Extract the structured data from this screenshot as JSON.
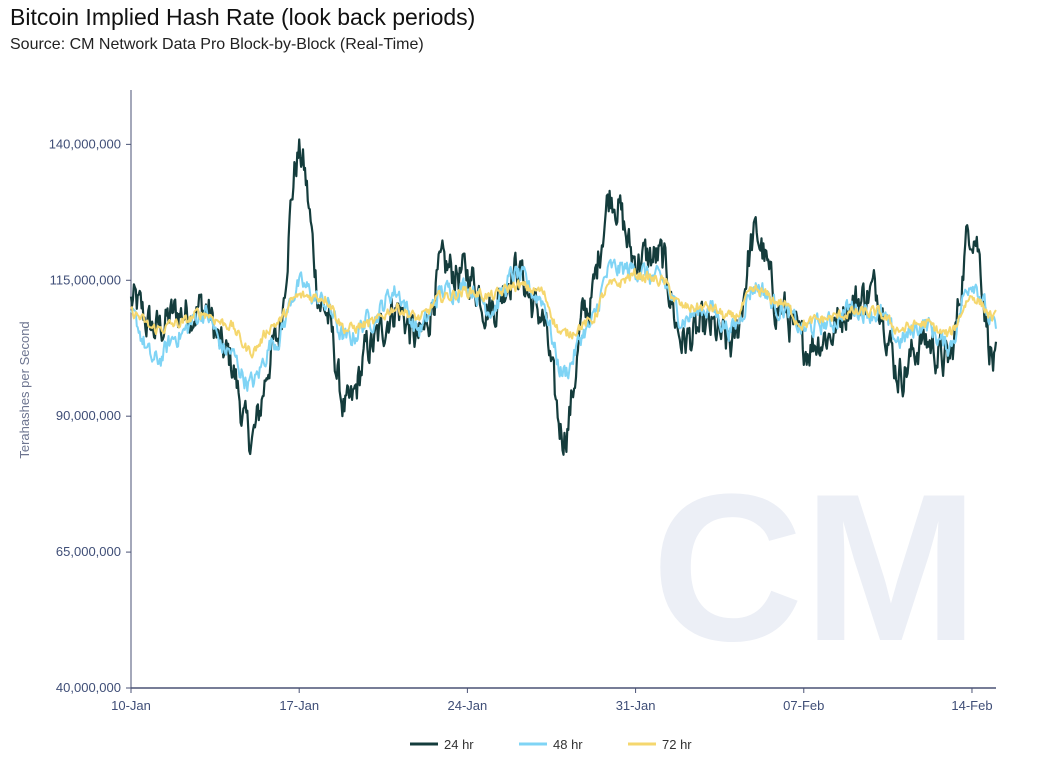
{
  "title": "Bitcoin Implied Hash Rate (look back periods)",
  "subtitle": "Source: CM Network Data Pro Block-by-Block (Real-Time)",
  "watermark": "CM",
  "chart_data": {
    "type": "line",
    "ylabel": "Terahashes per Second",
    "xlabel": "",
    "ylim": [
      40000000,
      150000000
    ],
    "xlim": [
      "2021-01-10",
      "2021-02-15"
    ],
    "y_ticks": [
      {
        "value": 40000000,
        "label": "40,000,000"
      },
      {
        "value": 65000000,
        "label": "65,000,000"
      },
      {
        "value": 90000000,
        "label": "90,000,000"
      },
      {
        "value": 115000000,
        "label": "115,000,000"
      },
      {
        "value": 140000000,
        "label": "140,000,000"
      }
    ],
    "x_ticks": [
      {
        "value": "2021-01-10",
        "label": "10-Jan"
      },
      {
        "value": "2021-01-17",
        "label": "17-Jan"
      },
      {
        "value": "2021-01-24",
        "label": "24-Jan"
      },
      {
        "value": "2021-01-31",
        "label": "31-Jan"
      },
      {
        "value": "2021-02-07",
        "label": "07-Feb"
      },
      {
        "value": "2021-02-14",
        "label": "14-Feb"
      }
    ],
    "legend_position": "bottom",
    "x": [
      "2021-01-10",
      "2021-01-11",
      "2021-01-12",
      "2021-01-13",
      "2021-01-14",
      "2021-01-15",
      "2021-01-16",
      "2021-01-17",
      "2021-01-18",
      "2021-01-19",
      "2021-01-20",
      "2021-01-21",
      "2021-01-22",
      "2021-01-23",
      "2021-01-24",
      "2021-01-25",
      "2021-01-26",
      "2021-01-27",
      "2021-01-28",
      "2021-01-29",
      "2021-01-30",
      "2021-01-31",
      "2021-02-01",
      "2021-02-02",
      "2021-02-03",
      "2021-02-04",
      "2021-02-05",
      "2021-02-06",
      "2021-02-07",
      "2021-02-08",
      "2021-02-09",
      "2021-02-10",
      "2021-02-11",
      "2021-02-12",
      "2021-02-13",
      "2021-02-14",
      "2021-02-15"
    ],
    "series": [
      {
        "name": "24 hr",
        "color": "#143c3c",
        "values": [
          111000000,
          106000000,
          109000000,
          110000000,
          101000000,
          86000000,
          103000000,
          138000000,
          110000000,
          91000000,
          103000000,
          110000000,
          104000000,
          117000000,
          116000000,
          110000000,
          117000000,
          109000000,
          87000000,
          110000000,
          131000000,
          119000000,
          119000000,
          104000000,
          106000000,
          103000000,
          123000000,
          110000000,
          103000000,
          105000000,
          111000000,
          113000000,
          98000000,
          104000000,
          100000000,
          125000000,
          99000000
        ]
      },
      {
        "name": "48 hr",
        "color": "#7fd4f5",
        "values": [
          108000000,
          100000000,
          105000000,
          109000000,
          102000000,
          96000000,
          104000000,
          114000000,
          111000000,
          104000000,
          108000000,
          113000000,
          106000000,
          113000000,
          114000000,
          110000000,
          116000000,
          112000000,
          98000000,
          106000000,
          117000000,
          117000000,
          115000000,
          108000000,
          110000000,
          106000000,
          114000000,
          110000000,
          106000000,
          107000000,
          110000000,
          109000000,
          104000000,
          107000000,
          103000000,
          115000000,
          106000000
        ]
      },
      {
        "name": "72 hr",
        "color": "#f5d76e",
        "values": [
          109000000,
          106000000,
          107000000,
          109000000,
          107000000,
          102000000,
          107000000,
          112000000,
          112000000,
          106000000,
          107000000,
          110000000,
          108000000,
          112000000,
          113000000,
          112000000,
          114000000,
          113000000,
          105000000,
          107000000,
          114000000,
          116000000,
          115000000,
          110000000,
          110000000,
          108000000,
          113000000,
          111000000,
          107000000,
          108000000,
          109000000,
          109000000,
          106000000,
          107000000,
          105000000,
          112000000,
          108000000
        ]
      }
    ]
  }
}
